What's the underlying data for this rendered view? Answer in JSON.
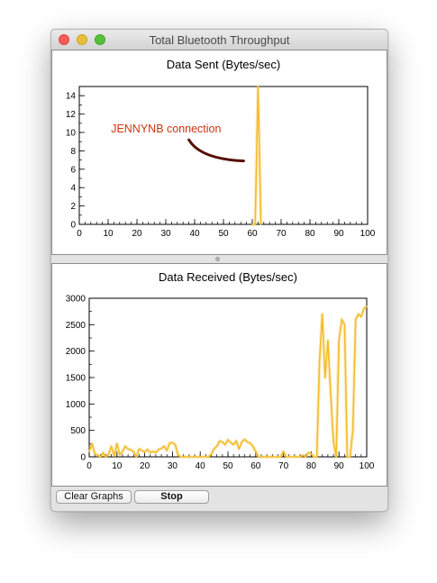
{
  "window": {
    "title": "Total Bluetooth Throughput"
  },
  "buttons": {
    "clear_label": "Clear Graphs",
    "stop_label": "Stop"
  },
  "colors": {
    "series": "#f2bd2c",
    "annotation_text": "#cc3311",
    "annotation_arrow": "#551000"
  },
  "chart_data": [
    {
      "type": "line",
      "title": "Data Sent (Bytes/sec)",
      "xlim": [
        0,
        100
      ],
      "ylim": [
        0,
        15
      ],
      "xticks": [
        0,
        10,
        20,
        30,
        40,
        50,
        60,
        70,
        80,
        90,
        100
      ],
      "yticks": [
        0,
        2,
        4,
        6,
        8,
        10,
        12,
        14
      ],
      "annotation": "JENNYNB connection",
      "series": [
        {
          "x": [
            60,
            61,
            62,
            63
          ],
          "y": [
            0,
            0,
            15,
            0
          ]
        }
      ]
    },
    {
      "type": "line",
      "title": "Data Received (Bytes/sec)",
      "xlim": [
        0,
        100
      ],
      "ylim": [
        0,
        3000
      ],
      "xticks": [
        0,
        10,
        20,
        30,
        40,
        50,
        60,
        70,
        80,
        90,
        100
      ],
      "yticks": [
        0,
        500,
        1000,
        1500,
        2000,
        2500,
        3000
      ],
      "series": [
        {
          "x": [
            0,
            1,
            2,
            3,
            4,
            5,
            6,
            7,
            8,
            9,
            10,
            11,
            12,
            13,
            14,
            15,
            16,
            17,
            18,
            19,
            20,
            21,
            22,
            23,
            24,
            25,
            26,
            27,
            28,
            29,
            30,
            31,
            32,
            33,
            34,
            35,
            36,
            37,
            38,
            39,
            40,
            41,
            42,
            43,
            44,
            45,
            46,
            47,
            48,
            49,
            50,
            51,
            52,
            53,
            54,
            55,
            56,
            57,
            58,
            59,
            60,
            61,
            62,
            63,
            64,
            65,
            66,
            67,
            68,
            69,
            70,
            71,
            72,
            73,
            74,
            75,
            76,
            77,
            78,
            79,
            80,
            81,
            82,
            83,
            84,
            85,
            86,
            87,
            88,
            89,
            90,
            91,
            92,
            93,
            94,
            95,
            96,
            97,
            98,
            99,
            100
          ],
          "y": [
            100,
            250,
            60,
            30,
            0,
            80,
            0,
            50,
            200,
            20,
            250,
            40,
            100,
            200,
            150,
            130,
            100,
            0,
            150,
            120,
            90,
            140,
            80,
            100,
            80,
            140,
            160,
            200,
            120,
            260,
            270,
            230,
            30,
            0,
            0,
            0,
            0,
            0,
            0,
            0,
            0,
            0,
            0,
            0,
            50,
            150,
            200,
            300,
            280,
            230,
            320,
            270,
            230,
            300,
            150,
            280,
            330,
            280,
            260,
            200,
            100,
            0,
            0,
            0,
            0,
            0,
            0,
            0,
            0,
            0,
            100,
            0,
            0,
            0,
            0,
            0,
            0,
            30,
            0,
            80,
            60,
            0,
            0,
            1800,
            2700,
            1500,
            2200,
            1200,
            300,
            0,
            2200,
            2600,
            2500,
            0,
            0,
            500,
            2600,
            2700,
            2650,
            2800,
            2850
          ]
        }
      ]
    }
  ]
}
